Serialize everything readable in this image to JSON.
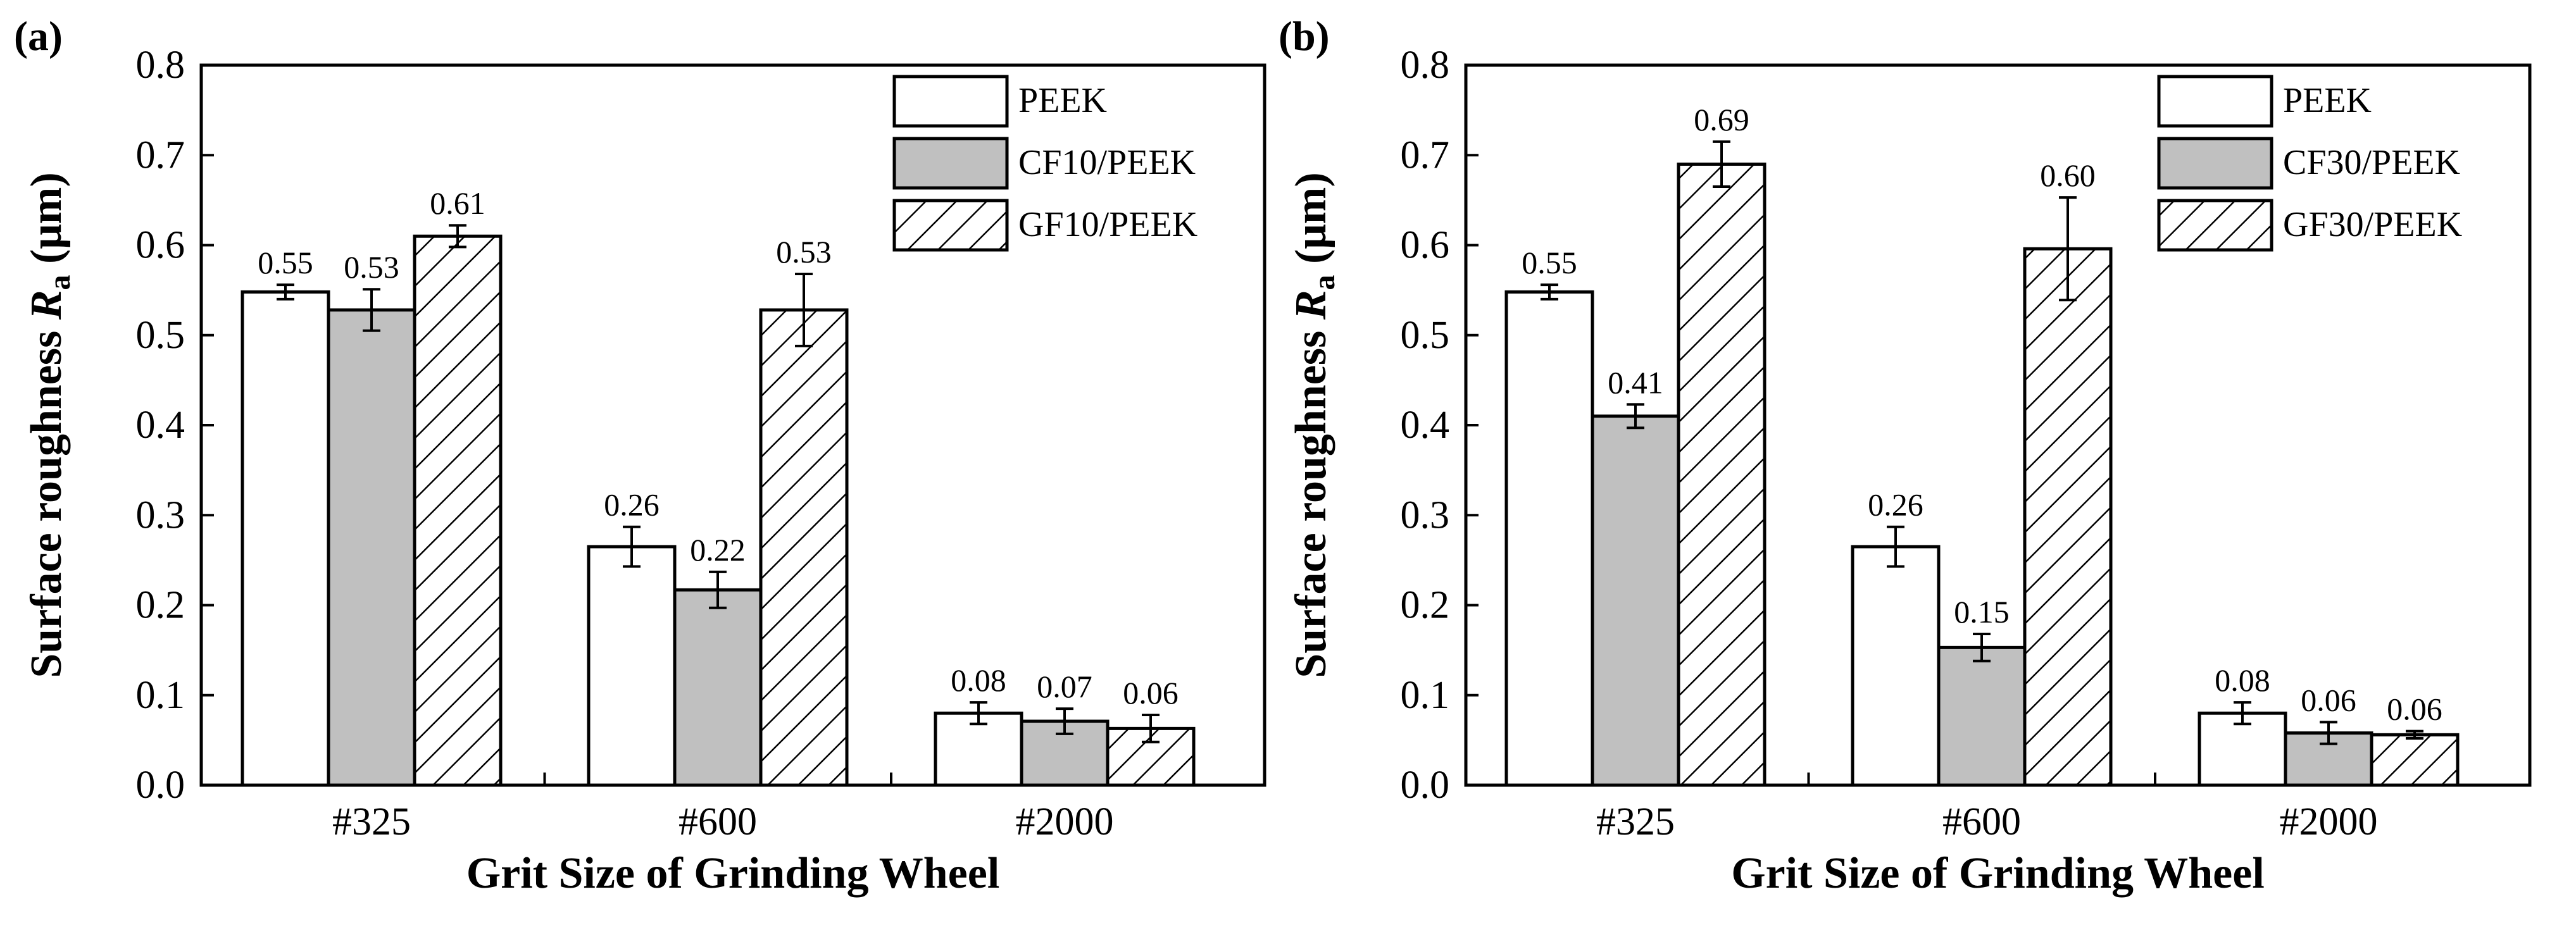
{
  "chart_data": [
    {
      "type": "bar",
      "panel_label": "(a)",
      "categories": [
        "#325",
        "#600",
        "#2000"
      ],
      "series": [
        {
          "name": "PEEK",
          "values": [
            0.548,
            0.265,
            0.08
          ],
          "errors": [
            0.008,
            0.022,
            0.012
          ],
          "labels": [
            "0.55",
            "0.26",
            "0.08"
          ],
          "fill": "#ffffff",
          "pattern": "none"
        },
        {
          "name": "CF10/PEEK",
          "values": [
            0.528,
            0.217,
            0.071
          ],
          "errors": [
            0.023,
            0.02,
            0.014
          ],
          "labels": [
            "0.53",
            "0.22",
            "0.07"
          ],
          "fill": "#c0c0c0",
          "pattern": "none"
        },
        {
          "name": "GF10/PEEK",
          "values": [
            0.61,
            0.528,
            0.063
          ],
          "errors": [
            0.012,
            0.04,
            0.015
          ],
          "labels": [
            "0.61",
            "0.53",
            "0.06"
          ],
          "fill": "#ffffff",
          "pattern": "hatch"
        }
      ],
      "ylim": [
        0,
        0.8
      ],
      "yticks": [
        "0.0",
        "0.1",
        "0.2",
        "0.3",
        "0.4",
        "0.5",
        "0.6",
        "0.7",
        "0.8"
      ],
      "ylabel_main": "Surface roughness ",
      "ylabel_italic": "R",
      "ylabel_sub": "a",
      "ylabel_unit": " (μm)",
      "xlabel": "Grit Size of Grinding Wheel",
      "legend_position": "top-right"
    },
    {
      "type": "bar",
      "panel_label": "(b)",
      "categories": [
        "#325",
        "#600",
        "#2000"
      ],
      "series": [
        {
          "name": "PEEK",
          "values": [
            0.548,
            0.265,
            0.08
          ],
          "errors": [
            0.008,
            0.022,
            0.012
          ],
          "labels": [
            "0.55",
            "0.26",
            "0.08"
          ],
          "fill": "#ffffff",
          "pattern": "none"
        },
        {
          "name": "CF30/PEEK",
          "values": [
            0.41,
            0.153,
            0.058
          ],
          "errors": [
            0.013,
            0.015,
            0.012
          ],
          "labels": [
            "0.41",
            "0.15",
            "0.06"
          ],
          "fill": "#c0c0c0",
          "pattern": "none"
        },
        {
          "name": "GF30/PEEK",
          "values": [
            0.69,
            0.596,
            0.056
          ],
          "errors": [
            0.025,
            0.057,
            0.004
          ],
          "labels": [
            "0.69",
            "0.60",
            "0.06"
          ],
          "fill": "#ffffff",
          "pattern": "hatch"
        }
      ],
      "ylim": [
        0,
        0.8
      ],
      "yticks": [
        "0.0",
        "0.1",
        "0.2",
        "0.3",
        "0.4",
        "0.5",
        "0.6",
        "0.7",
        "0.8"
      ],
      "ylabel_main": "Surface roughness ",
      "ylabel_italic": "R",
      "ylabel_sub": "a",
      "ylabel_unit": " (μm)",
      "xlabel": "Grit Size of Grinding Wheel",
      "legend_position": "top-right"
    }
  ]
}
